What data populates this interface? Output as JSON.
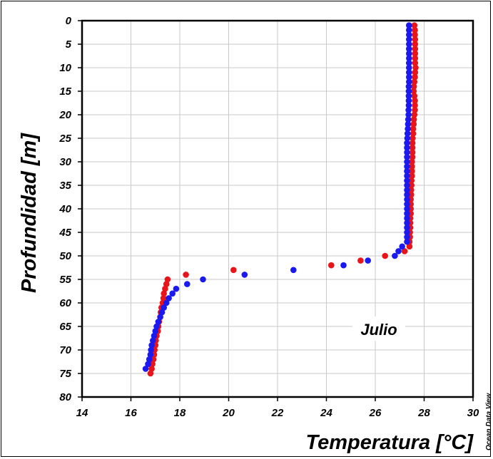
{
  "chart_data": {
    "type": "scatter",
    "xlabel": "Temperatura [°C]",
    "ylabel": "Profundidad [m]",
    "annotation": "Julio",
    "credit": "Ocean Data View",
    "xlim": [
      14,
      30
    ],
    "ylim": [
      80,
      0
    ],
    "y_inverted": true,
    "grid": true,
    "xticks": [
      14,
      16,
      18,
      20,
      22,
      24,
      26,
      28,
      30
    ],
    "yticks": [
      0,
      5,
      10,
      15,
      20,
      25,
      30,
      35,
      40,
      45,
      50,
      55,
      60,
      65,
      70,
      75,
      80
    ],
    "series": [
      {
        "color": "#e8141a",
        "points": [
          [
            27.6,
            1
          ],
          [
            27.62,
            2
          ],
          [
            27.62,
            3
          ],
          [
            27.63,
            4
          ],
          [
            27.63,
            5
          ],
          [
            27.63,
            6
          ],
          [
            27.63,
            7
          ],
          [
            27.63,
            8
          ],
          [
            27.63,
            9
          ],
          [
            27.65,
            10
          ],
          [
            27.63,
            11
          ],
          [
            27.62,
            12
          ],
          [
            27.6,
            13
          ],
          [
            27.58,
            14
          ],
          [
            27.57,
            15
          ],
          [
            27.6,
            16
          ],
          [
            27.62,
            17
          ],
          [
            27.62,
            18
          ],
          [
            27.62,
            19
          ],
          [
            27.6,
            20
          ],
          [
            27.58,
            21
          ],
          [
            27.57,
            22
          ],
          [
            27.55,
            23
          ],
          [
            27.55,
            24
          ],
          [
            27.53,
            25
          ],
          [
            27.52,
            26
          ],
          [
            27.52,
            27
          ],
          [
            27.52,
            28
          ],
          [
            27.52,
            29
          ],
          [
            27.5,
            30
          ],
          [
            27.5,
            31
          ],
          [
            27.5,
            32
          ],
          [
            27.5,
            33
          ],
          [
            27.48,
            34
          ],
          [
            27.48,
            35
          ],
          [
            27.47,
            36
          ],
          [
            27.47,
            37
          ],
          [
            27.45,
            38
          ],
          [
            27.45,
            39
          ],
          [
            27.45,
            40
          ],
          [
            27.45,
            41
          ],
          [
            27.43,
            42
          ],
          [
            27.43,
            43
          ],
          [
            27.43,
            44
          ],
          [
            27.42,
            45
          ],
          [
            27.42,
            46
          ],
          [
            27.4,
            47
          ],
          [
            27.4,
            48
          ],
          [
            27.2,
            49
          ],
          [
            26.4,
            50
          ],
          [
            25.4,
            51
          ],
          [
            24.2,
            52
          ],
          [
            20.2,
            53
          ],
          [
            18.25,
            54
          ],
          [
            17.5,
            55
          ],
          [
            17.45,
            56
          ],
          [
            17.4,
            57
          ],
          [
            17.35,
            58
          ],
          [
            17.33,
            59
          ],
          [
            17.3,
            60
          ],
          [
            17.25,
            61
          ],
          [
            17.22,
            62
          ],
          [
            17.2,
            63
          ],
          [
            17.15,
            64
          ],
          [
            17.12,
            65
          ],
          [
            17.1,
            66
          ],
          [
            17.05,
            67
          ],
          [
            17.02,
            68
          ],
          [
            17.0,
            69
          ],
          [
            16.97,
            70
          ],
          [
            16.95,
            71
          ],
          [
            16.92,
            72
          ],
          [
            16.88,
            73
          ],
          [
            16.85,
            74
          ],
          [
            16.8,
            75
          ]
        ]
      },
      {
        "color": "#1a1af0",
        "points": [
          [
            27.38,
            1
          ],
          [
            27.38,
            2
          ],
          [
            27.38,
            3
          ],
          [
            27.38,
            4
          ],
          [
            27.38,
            5
          ],
          [
            27.38,
            6
          ],
          [
            27.38,
            7
          ],
          [
            27.38,
            8
          ],
          [
            27.38,
            9
          ],
          [
            27.38,
            10
          ],
          [
            27.38,
            11
          ],
          [
            27.38,
            12
          ],
          [
            27.38,
            13
          ],
          [
            27.37,
            14
          ],
          [
            27.37,
            15
          ],
          [
            27.37,
            16
          ],
          [
            27.37,
            17
          ],
          [
            27.37,
            18
          ],
          [
            27.36,
            19
          ],
          [
            27.36,
            20
          ],
          [
            27.35,
            21
          ],
          [
            27.34,
            22
          ],
          [
            27.33,
            23
          ],
          [
            27.32,
            24
          ],
          [
            27.31,
            25
          ],
          [
            27.3,
            26
          ],
          [
            27.3,
            27
          ],
          [
            27.3,
            28
          ],
          [
            27.3,
            29
          ],
          [
            27.3,
            30
          ],
          [
            27.3,
            31
          ],
          [
            27.3,
            32
          ],
          [
            27.3,
            33
          ],
          [
            27.3,
            34
          ],
          [
            27.3,
            35
          ],
          [
            27.3,
            36
          ],
          [
            27.3,
            37
          ],
          [
            27.3,
            38
          ],
          [
            27.3,
            39
          ],
          [
            27.3,
            40
          ],
          [
            27.3,
            41
          ],
          [
            27.3,
            42
          ],
          [
            27.3,
            43
          ],
          [
            27.3,
            44
          ],
          [
            27.3,
            45
          ],
          [
            27.3,
            46
          ],
          [
            27.3,
            47
          ],
          [
            27.1,
            48
          ],
          [
            26.95,
            49
          ],
          [
            26.8,
            50
          ],
          [
            25.7,
            51
          ],
          [
            24.7,
            52
          ],
          [
            22.65,
            53
          ],
          [
            20.65,
            54
          ],
          [
            18.95,
            55
          ],
          [
            18.3,
            56
          ],
          [
            17.85,
            57
          ],
          [
            17.7,
            58
          ],
          [
            17.55,
            59
          ],
          [
            17.45,
            60
          ],
          [
            17.35,
            61
          ],
          [
            17.27,
            62
          ],
          [
            17.2,
            63
          ],
          [
            17.12,
            64
          ],
          [
            17.05,
            65
          ],
          [
            17.0,
            66
          ],
          [
            16.95,
            67
          ],
          [
            16.9,
            68
          ],
          [
            16.85,
            69
          ],
          [
            16.82,
            70
          ],
          [
            16.8,
            71
          ],
          [
            16.75,
            72
          ],
          [
            16.7,
            73
          ],
          [
            16.6,
            74
          ]
        ]
      }
    ]
  }
}
